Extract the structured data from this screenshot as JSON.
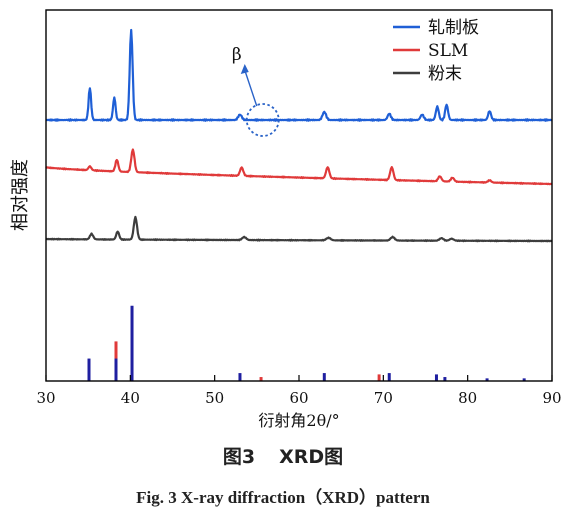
{
  "chart_data": {
    "type": "line",
    "xlabel": "衍射角2θ/°",
    "ylabel": "相对强度",
    "xlim": [
      30,
      90
    ],
    "xticks": [
      "30",
      "40",
      "50",
      "60",
      "70",
      "80",
      "90"
    ],
    "legend": {
      "position": "top-right",
      "entries": [
        {
          "name": "轧制板",
          "color": "#1f5fd6"
        },
        {
          "name": "SLM",
          "color": "#e03a3a"
        },
        {
          "name": "粉末",
          "color": "#3d3d3d"
        }
      ]
    },
    "annotation": {
      "text": "β",
      "x": 55.7,
      "series": "轧制板"
    },
    "series": [
      {
        "name": "轧制板",
        "color": "#1f5fd6",
        "start": 0,
        "end": 0,
        "peaks": [
          {
            "x": 35.2,
            "h": 0.36,
            "w": 0.35
          },
          {
            "x": 38.1,
            "h": 0.25,
            "w": 0.35
          },
          {
            "x": 40.1,
            "h": 1.0,
            "w": 0.4
          },
          {
            "x": 53.0,
            "h": 0.06,
            "w": 0.5
          },
          {
            "x": 63.0,
            "h": 0.09,
            "w": 0.5
          },
          {
            "x": 70.7,
            "h": 0.07,
            "w": 0.45
          },
          {
            "x": 74.6,
            "h": 0.06,
            "w": 0.45
          },
          {
            "x": 76.4,
            "h": 0.15,
            "w": 0.4
          },
          {
            "x": 77.5,
            "h": 0.17,
            "w": 0.4
          },
          {
            "x": 82.6,
            "h": 0.1,
            "w": 0.4
          }
        ]
      },
      {
        "name": "SLM",
        "color": "#e03a3a",
        "start": 0.3,
        "end": 0,
        "peaks": [
          {
            "x": 35.2,
            "h": 0.07,
            "w": 0.4
          },
          {
            "x": 38.4,
            "h": 0.21,
            "w": 0.4
          },
          {
            "x": 40.3,
            "h": 0.4,
            "w": 0.45
          },
          {
            "x": 53.2,
            "h": 0.15,
            "w": 0.45
          },
          {
            "x": 63.4,
            "h": 0.2,
            "w": 0.45
          },
          {
            "x": 71.0,
            "h": 0.23,
            "w": 0.45
          },
          {
            "x": 76.7,
            "h": 0.09,
            "w": 0.45
          },
          {
            "x": 78.2,
            "h": 0.07,
            "w": 0.45
          },
          {
            "x": 82.6,
            "h": 0.04,
            "w": 0.45
          }
        ]
      },
      {
        "name": "粉末",
        "color": "#3d3d3d",
        "start": 0.04,
        "end": 0,
        "peaks": [
          {
            "x": 35.4,
            "h": 0.11,
            "w": 0.45
          },
          {
            "x": 38.5,
            "h": 0.16,
            "w": 0.4
          },
          {
            "x": 40.6,
            "h": 0.45,
            "w": 0.45
          },
          {
            "x": 53.5,
            "h": 0.06,
            "w": 0.55
          },
          {
            "x": 63.5,
            "h": 0.05,
            "w": 0.6
          },
          {
            "x": 71.1,
            "h": 0.07,
            "w": 0.55
          },
          {
            "x": 76.9,
            "h": 0.05,
            "w": 0.55
          },
          {
            "x": 78.1,
            "h": 0.04,
            "w": 0.55
          }
        ]
      }
    ],
    "reference_lines": [
      {
        "x": 35.1,
        "h": 0.17,
        "color": "#1f1fa0"
      },
      {
        "x": 38.3,
        "h": 0.3,
        "color": "#e03a3a"
      },
      {
        "x": 38.3,
        "h": 0.17,
        "color": "#1f1fa0"
      },
      {
        "x": 40.2,
        "h": 0.57,
        "color": "#1f1fa0"
      },
      {
        "x": 53.0,
        "h": 0.06,
        "color": "#1f1fa0"
      },
      {
        "x": 55.5,
        "h": 0.03,
        "color": "#e03a3a"
      },
      {
        "x": 63.0,
        "h": 0.06,
        "color": "#1f1fa0"
      },
      {
        "x": 69.5,
        "h": 0.05,
        "color": "#e03a3a"
      },
      {
        "x": 70.7,
        "h": 0.06,
        "color": "#1f1fa0"
      },
      {
        "x": 76.3,
        "h": 0.05,
        "color": "#1f1fa0"
      },
      {
        "x": 77.3,
        "h": 0.03,
        "color": "#1f1fa0"
      },
      {
        "x": 82.3,
        "h": 0.02,
        "color": "#1f1fa0"
      },
      {
        "x": 86.7,
        "h": 0.02,
        "color": "#1f1fa0"
      }
    ]
  },
  "caption": {
    "cn_prefix": "图3",
    "cn_title": "XRD图",
    "en": "Fig. 3    X-ray diffraction（XRD）pattern"
  }
}
